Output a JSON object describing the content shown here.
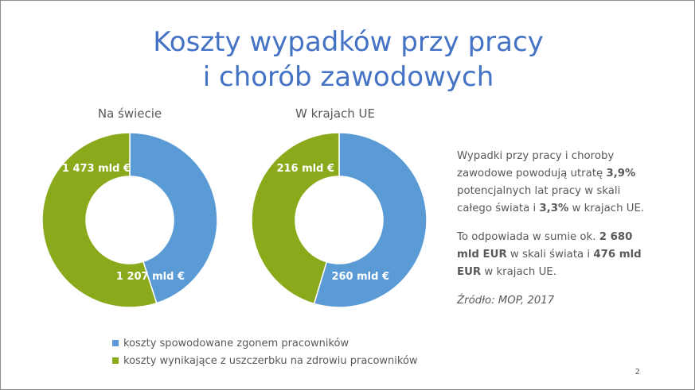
{
  "title_line1": "Koszty wypadków przy pracy",
  "title_line2": "i chorób zawodowych",
  "colors": {
    "blue": "#5b9bd5",
    "green": "#8aaa1b",
    "title": "#4472c4",
    "text": "#595959"
  },
  "chart_data": [
    {
      "type": "pie",
      "subtype": "donut",
      "title": "Na świecie",
      "slices": [
        {
          "name": "koszty spowodowane zgonem pracowników",
          "value": 1207,
          "label": "1 207 mld €",
          "color": "#5b9bd5"
        },
        {
          "name": "koszty wynikające z uszczerbku na zdrowiu pracowników",
          "value": 1473,
          "label": "1 473 mld €",
          "color": "#8aaa1b"
        }
      ]
    },
    {
      "type": "pie",
      "subtype": "donut",
      "title": "W krajach UE",
      "slices": [
        {
          "name": "koszty spowodowane zgonem pracowników",
          "value": 260,
          "label": "260 mld €",
          "color": "#5b9bd5"
        },
        {
          "name": "koszty wynikające z uszczerbku na zdrowiu pracowników",
          "value": 216,
          "label": "216 mld €",
          "color": "#8aaa1b"
        }
      ]
    }
  ],
  "legend": [
    {
      "label": "koszty spowodowane zgonem pracowników",
      "color": "#5b9bd5"
    },
    {
      "label": "koszty wynikające z uszczerbku na zdrowiu pracowników",
      "color": "#8aaa1b"
    }
  ],
  "side": {
    "p1_a": "Wypadki przy pracy i choroby zawodowe powodują utratę ",
    "p1_b": "3,9%",
    "p1_c": " potencjalnych lat pracy w skali całego świata i ",
    "p1_d": "3,3%",
    "p1_e": " w krajach UE.",
    "p2_a": "To odpowiada w sumie ok. ",
    "p2_b": "2 680 mld EUR",
    "p2_c": " w skali świata i ",
    "p2_d": "476 mld EUR",
    "p2_e": " w krajach UE.",
    "source": "Źródło: MOP, 2017"
  },
  "page_number": "2"
}
